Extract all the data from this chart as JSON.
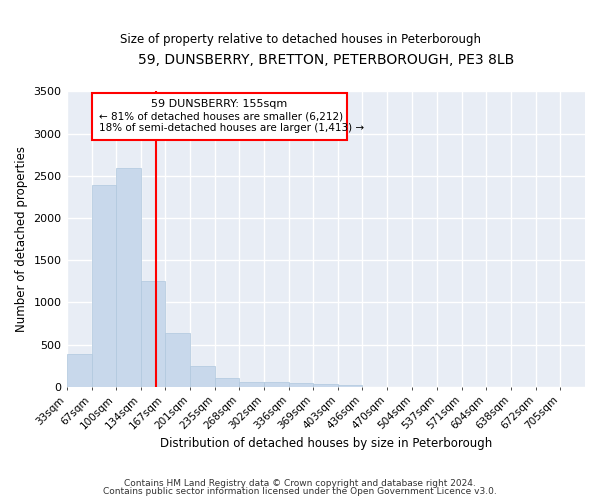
{
  "title": "59, DUNSBERRY, BRETTON, PETERBOROUGH, PE3 8LB",
  "subtitle": "Size of property relative to detached houses in Peterborough",
  "xlabel": "Distribution of detached houses by size in Peterborough",
  "ylabel": "Number of detached properties",
  "bar_color": "#c8d8eb",
  "bar_edge_color": "#b0c8de",
  "bg_color": "#e8edf5",
  "grid_color": "#ffffff",
  "redline_x": 155,
  "annotation_title": "59 DUNSBERRY: 155sqm",
  "annotation_line1": "← 81% of detached houses are smaller (6,212)",
  "annotation_line2": "18% of semi-detached houses are larger (1,413) →",
  "categories": [
    "33sqm",
    "67sqm",
    "100sqm",
    "134sqm",
    "167sqm",
    "201sqm",
    "235sqm",
    "268sqm",
    "302sqm",
    "336sqm",
    "369sqm",
    "403sqm",
    "436sqm",
    "470sqm",
    "504sqm",
    "537sqm",
    "571sqm",
    "604sqm",
    "638sqm",
    "672sqm",
    "705sqm"
  ],
  "bin_edges": [
    33,
    67,
    100,
    134,
    167,
    201,
    235,
    268,
    302,
    336,
    369,
    403,
    436,
    470,
    504,
    537,
    571,
    604,
    638,
    672,
    705,
    739
  ],
  "values": [
    390,
    2390,
    2590,
    1260,
    640,
    250,
    110,
    60,
    55,
    50,
    30,
    20,
    5,
    3,
    2,
    1,
    1,
    1,
    0,
    0,
    0
  ],
  "ylim": [
    0,
    3500
  ],
  "footer1": "Contains HM Land Registry data © Crown copyright and database right 2024.",
  "footer2": "Contains public sector information licensed under the Open Government Licence v3.0."
}
